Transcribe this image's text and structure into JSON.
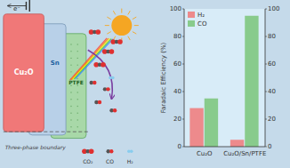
{
  "chart_data": {
    "type": "bar",
    "categories": [
      "Cu₂O",
      "Cu₂O/Sn/PTFE"
    ],
    "series": [
      {
        "name": "H₂",
        "color": "#f08080",
        "values": [
          28,
          5
        ]
      },
      {
        "name": "CO",
        "color": "#80c880",
        "values": [
          35,
          95
        ]
      }
    ],
    "y_label": "Faradaic Efficiency (%)",
    "ylim": [
      0,
      100
    ],
    "yticks": [
      0,
      20,
      40,
      60,
      80,
      100
    ],
    "y2lim": [
      0,
      100
    ],
    "y2ticks": [
      0,
      20,
      40,
      60,
      80,
      100
    ],
    "legend": "upper left",
    "grid": false,
    "annotations": [
      "Cu₂O",
      "Sn",
      "PTFE",
      "Three-phase boundary",
      "e⁻",
      "CO₂",
      "CO",
      "H₂"
    ]
  }
}
